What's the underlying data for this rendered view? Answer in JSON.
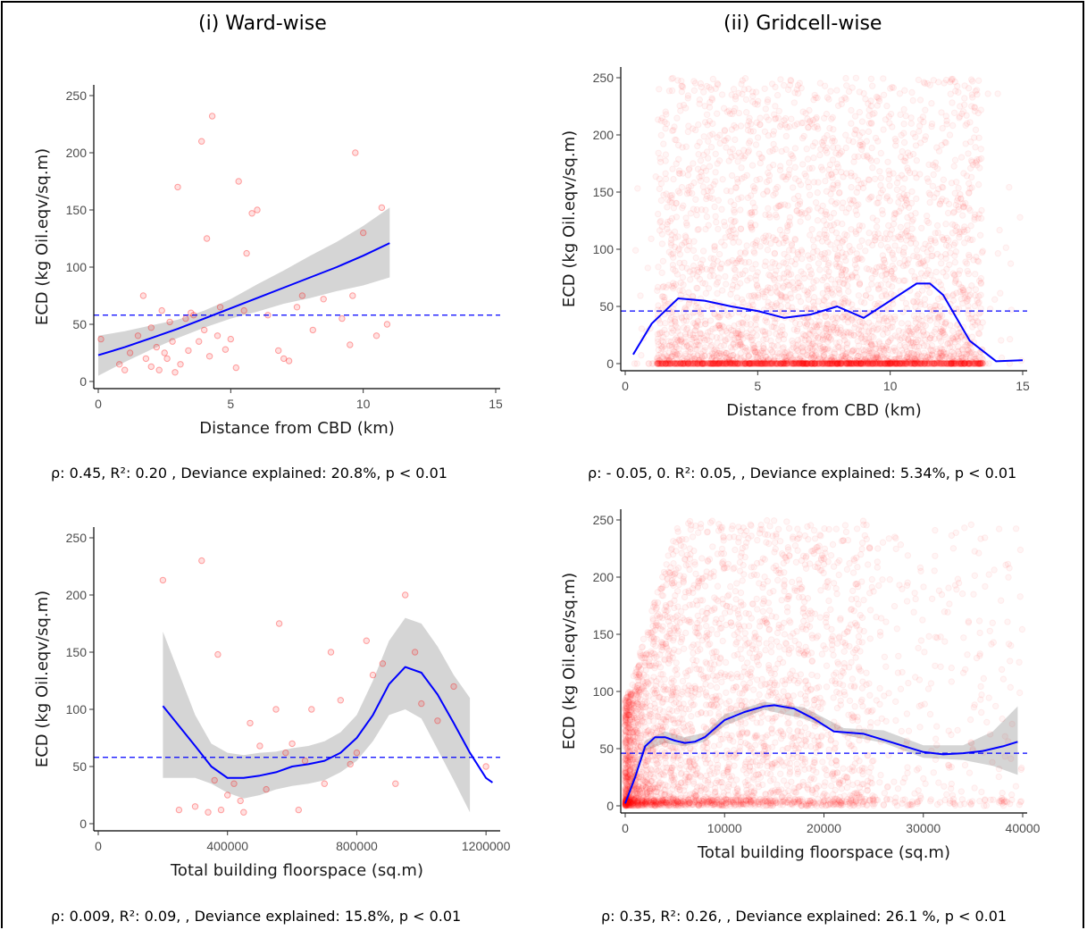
{
  "columns": [
    "(i) Ward-wise",
    "(ii) Gridcell-wise"
  ],
  "colors": {
    "points": "#ff0000",
    "smooth": "#0000ff",
    "band": "#d3d3d3",
    "reference": "#0000ff"
  },
  "chart_data": [
    {
      "type": "scatter",
      "xlabel": "Distance from CBD (km)",
      "ylabel": "ECD (kg Oil.eqv/sq.m)",
      "xlim": [
        0,
        15
      ],
      "ylim": [
        0,
        250
      ],
      "xticks": [
        0,
        5,
        10,
        15
      ],
      "xtick_labels": [
        "0",
        "5",
        "10",
        "15"
      ],
      "yticks": [
        0,
        50,
        100,
        150,
        200,
        250
      ],
      "ytick_labels": [
        "0",
        "50",
        "100",
        "150",
        "200",
        "250"
      ],
      "hline": 58,
      "caption": "ρ: 0.45,  R²: 0.20 , Deviance explained: 20.8%,  p < 0.01",
      "points": {
        "x": [
          0.1,
          0.8,
          1.0,
          1.2,
          1.5,
          1.7,
          1.8,
          2.0,
          2.0,
          2.2,
          2.3,
          2.4,
          2.5,
          2.6,
          2.7,
          2.8,
          2.9,
          3.0,
          3.1,
          3.3,
          3.4,
          3.5,
          3.6,
          3.8,
          3.9,
          4.0,
          4.1,
          4.2,
          4.3,
          4.5,
          4.6,
          4.8,
          5.0,
          5.2,
          5.3,
          5.5,
          5.6,
          5.8,
          6.0,
          6.4,
          6.8,
          7.0,
          7.2,
          7.5,
          7.7,
          8.1,
          8.5,
          9.2,
          9.5,
          9.6,
          9.7,
          10.0,
          10.5,
          10.7,
          10.9
        ],
        "y": [
          37,
          15,
          10,
          25,
          40,
          75,
          20,
          47,
          13,
          30,
          10,
          62,
          25,
          20,
          52,
          35,
          8,
          170,
          15,
          55,
          27,
          60,
          58,
          35,
          210,
          45,
          125,
          22,
          232,
          40,
          65,
          28,
          37,
          12,
          175,
          62,
          112,
          147,
          150,
          58,
          27,
          20,
          18,
          65,
          75,
          45,
          72,
          55,
          32,
          75,
          200,
          130,
          40,
          152,
          50
        ]
      },
      "smooth": {
        "x": [
          0,
          1,
          2,
          3,
          4,
          5,
          6,
          7,
          8,
          9,
          10,
          11
        ],
        "y": [
          23,
          30,
          38,
          46,
          55,
          64,
          73,
          82,
          91,
          100,
          110,
          121
        ]
      },
      "band": {
        "x": [
          0,
          1,
          2,
          3,
          4,
          5,
          6,
          7,
          8,
          9,
          10,
          11
        ],
        "lo": [
          5,
          17,
          28,
          38,
          47,
          55,
          61,
          68,
          73,
          79,
          84,
          91
        ],
        "hi": [
          40,
          44,
          49,
          54,
          62,
          72,
          85,
          97,
          110,
          122,
          136,
          152
        ]
      }
    },
    {
      "type": "scatter",
      "xlabel": "Distance from CBD (km)",
      "ylabel": "ECD (kg Oil.eqv/sq.m)",
      "xlim": [
        0,
        15
      ],
      "ylim": [
        0,
        250
      ],
      "xticks": [
        0,
        5,
        10,
        15
      ],
      "xtick_labels": [
        "0",
        "5",
        "10",
        "15"
      ],
      "yticks": [
        0,
        50,
        100,
        150,
        200,
        250
      ],
      "ytick_labels": [
        "0",
        "50",
        "100",
        "150",
        "200",
        "250"
      ],
      "hline": 46,
      "caption": "ρ: - 0.05, 0. R²: 0.05, , Deviance explained: 5.34%, p < 0.01",
      "cloud": {
        "x_range": [
          0.3,
          15
        ],
        "dense_x_range": [
          1.2,
          13.5
        ],
        "y_range": [
          0,
          250
        ],
        "opacity": 0.04
      },
      "smooth": {
        "x": [
          0.3,
          1,
          2,
          3,
          4,
          5,
          6,
          7,
          8,
          9,
          10,
          11,
          11.5,
          12,
          13,
          14,
          15
        ],
        "y": [
          8,
          35,
          57,
          55,
          50,
          46,
          40,
          43,
          50,
          40,
          55,
          70,
          70,
          60,
          20,
          2,
          3
        ]
      }
    },
    {
      "type": "scatter",
      "xlabel": "Total building floorspace (sq.m)",
      "ylabel": "ECD (kg Oil.eqv/sq.m)",
      "xlim": [
        0,
        1230000
      ],
      "ylim": [
        0,
        250
      ],
      "xticks": [
        0,
        400000,
        800000,
        1200000
      ],
      "xtick_labels": [
        "0",
        "400000",
        "800000",
        "1200000"
      ],
      "yticks": [
        0,
        50,
        100,
        150,
        200,
        250
      ],
      "ytick_labels": [
        "0",
        "50",
        "100",
        "150",
        "200",
        "250"
      ],
      "hline": 58,
      "caption": "ρ: 0.009, R²: 0.09, , Deviance explained: 15.8%, p < 0.01",
      "points": {
        "x": [
          200000,
          250000,
          300000,
          320000,
          340000,
          360000,
          370000,
          380000,
          400000,
          420000,
          440000,
          450000,
          470000,
          500000,
          520000,
          550000,
          560000,
          580000,
          600000,
          620000,
          640000,
          660000,
          700000,
          720000,
          750000,
          780000,
          800000,
          830000,
          850000,
          880000,
          920000,
          950000,
          980000,
          1000000,
          1050000,
          1100000,
          1200000
        ],
        "y": [
          213,
          12,
          15,
          230,
          10,
          38,
          148,
          12,
          25,
          35,
          20,
          10,
          88,
          68,
          30,
          100,
          175,
          62,
          70,
          12,
          55,
          100,
          35,
          150,
          108,
          52,
          62,
          160,
          130,
          140,
          35,
          200,
          150,
          105,
          90,
          120,
          50
        ]
      },
      "smooth": {
        "x": [
          200000,
          300000,
          350000,
          400000,
          450000,
          500000,
          550000,
          600000,
          650000,
          700000,
          750000,
          800000,
          850000,
          900000,
          950000,
          1000000,
          1050000,
          1100000,
          1150000,
          1200000,
          1220000
        ],
        "y": [
          103,
          68,
          50,
          40,
          40,
          42,
          45,
          50,
          52,
          55,
          62,
          75,
          95,
          122,
          137,
          132,
          113,
          88,
          62,
          40,
          36
        ]
      },
      "band": {
        "x": [
          200000,
          300000,
          350000,
          400000,
          450000,
          500000,
          550000,
          600000,
          650000,
          700000,
          750000,
          800000,
          850000,
          900000,
          950000,
          1000000,
          1050000,
          1100000,
          1150000
        ],
        "lo": [
          40,
          40,
          35,
          27,
          22,
          25,
          30,
          33,
          35,
          38,
          45,
          55,
          72,
          95,
          100,
          92,
          65,
          38,
          10
        ],
        "hi": [
          168,
          95,
          70,
          62,
          60,
          62,
          63,
          66,
          68,
          72,
          80,
          95,
          125,
          160,
          180,
          175,
          155,
          130,
          110
        ]
      }
    },
    {
      "type": "scatter",
      "xlabel": "Total building floorspace (sq.m)",
      "ylabel": "ECD (kg Oil.eqv/sq.m)",
      "xlim": [
        0,
        40000
      ],
      "ylim": [
        0,
        250
      ],
      "xticks": [
        0,
        10000,
        20000,
        30000,
        40000
      ],
      "xtick_labels": [
        "0",
        "10000",
        "20000",
        "30000",
        "40000"
      ],
      "yticks": [
        0,
        50,
        100,
        150,
        200,
        250
      ],
      "ytick_labels": [
        "0",
        "50",
        "100",
        "150",
        "200",
        "250"
      ],
      "hline": 46,
      "caption": "ρ: 0.35, R²: 0.26, , Deviance explained: 26.1 %, p < 0.01",
      "cloud": {
        "x_range": [
          0,
          40000
        ],
        "dense_x_range": [
          0,
          24000
        ],
        "y_range": [
          0,
          250
        ],
        "opacity": 0.04
      },
      "smooth": {
        "x": [
          0,
          1000,
          2000,
          3000,
          4000,
          5000,
          6000,
          7000,
          8000,
          10000,
          12000,
          14000,
          15000,
          17000,
          19000,
          21000,
          24000,
          27000,
          30000,
          32000,
          34000,
          36000,
          38000,
          39500
        ],
        "y": [
          2,
          25,
          52,
          60,
          60,
          57,
          55,
          56,
          60,
          75,
          82,
          87,
          88,
          85,
          76,
          65,
          63,
          55,
          47,
          45,
          46,
          48,
          52,
          56
        ]
      },
      "band": {
        "x": [
          0,
          2000,
          4000,
          6000,
          8000,
          10000,
          14000,
          18000,
          22000,
          26000,
          30000,
          34000,
          37000,
          39500
        ],
        "lo": [
          0,
          48,
          55,
          52,
          56,
          70,
          84,
          76,
          62,
          55,
          42,
          40,
          35,
          27
        ],
        "hi": [
          6,
          57,
          65,
          60,
          64,
          80,
          91,
          86,
          68,
          66,
          53,
          53,
          65,
          87
        ]
      }
    }
  ]
}
